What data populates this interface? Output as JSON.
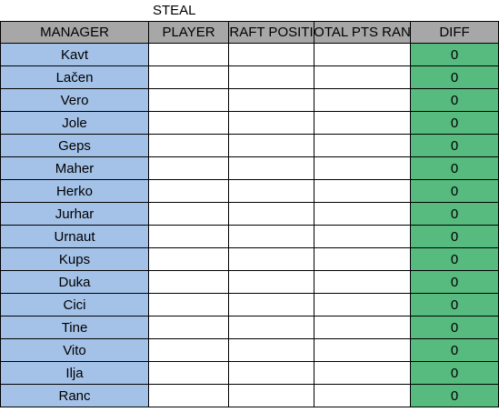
{
  "title": "STEAL",
  "columns": [
    "MANAGER",
    "PLAYER",
    "DRAFT POSITION",
    "TOTAL PTS RANK",
    "DIFF"
  ],
  "columns_visible": [
    "MANAGER",
    "PLAYER",
    "RAFT POSITI",
    "OTAL PTS RAN",
    "DIFF"
  ],
  "rows": [
    {
      "manager": "Kavt",
      "diff": "0"
    },
    {
      "manager": "Lačen",
      "diff": "0"
    },
    {
      "manager": "Vero",
      "diff": "0"
    },
    {
      "manager": "Jole",
      "diff": "0"
    },
    {
      "manager": "Geps",
      "diff": "0"
    },
    {
      "manager": "Maher",
      "diff": "0"
    },
    {
      "manager": "Herko",
      "diff": "0"
    },
    {
      "manager": "Jurhar",
      "diff": "0"
    },
    {
      "manager": "Urnaut",
      "diff": "0"
    },
    {
      "manager": "Kups",
      "diff": "0"
    },
    {
      "manager": "Duka",
      "diff": "0"
    },
    {
      "manager": "Cici",
      "diff": "0"
    },
    {
      "manager": "Tine",
      "diff": "0"
    },
    {
      "manager": "Vito",
      "diff": "0"
    },
    {
      "manager": "Ilja",
      "diff": "0"
    },
    {
      "manager": "Ranc",
      "diff": "0"
    }
  ],
  "colors": {
    "header_bg": "#a7a7a7",
    "manager_bg": "#a4c2e8",
    "diff_bg": "#57bb7f",
    "grid": "#000000"
  }
}
